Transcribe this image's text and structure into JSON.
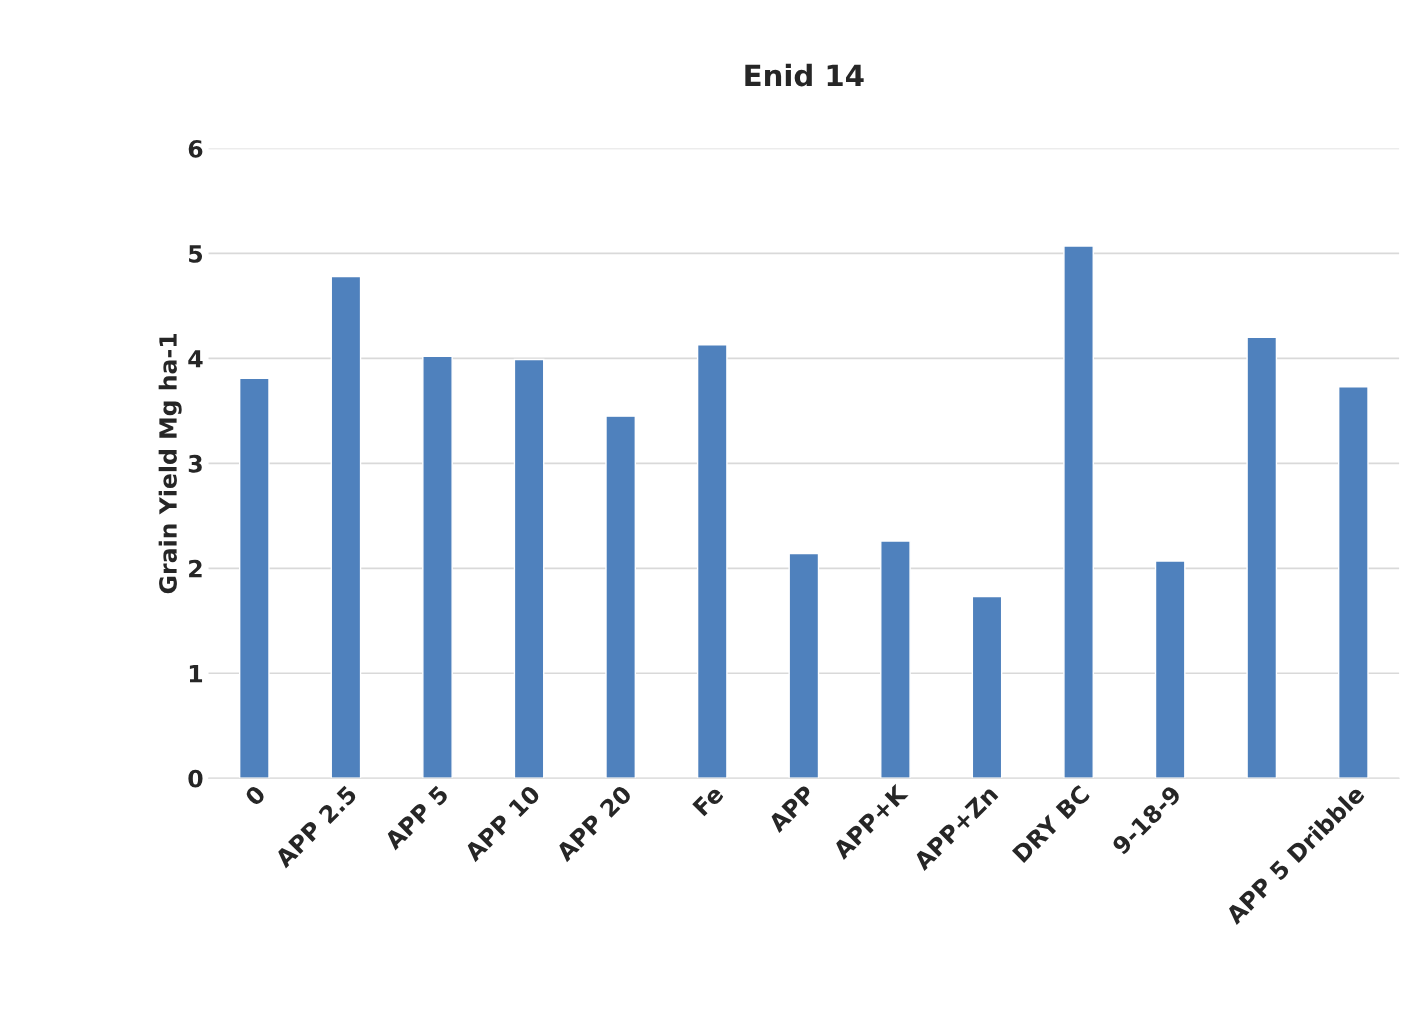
{
  "chart_data": {
    "type": "bar",
    "title": "Enid 14",
    "ylabel": "Grain Yield Mg ha-1",
    "categories": [
      "0",
      "APP 2.5",
      "APP 5",
      "APP 10",
      "APP 20",
      "Fe",
      "APP",
      "APP+K",
      "APP+Zn",
      "DRY BC",
      "9-18-9",
      null,
      "APP 5 Dribble"
    ],
    "values": [
      3.81,
      4.78,
      4.02,
      3.99,
      3.45,
      4.13,
      2.14,
      2.26,
      1.73,
      5.07,
      2.07,
      4.2,
      3.73
    ],
    "color": "#4f81bd",
    "ylim": [
      0,
      6
    ],
    "yticks": [
      0,
      1,
      2,
      3,
      4,
      5,
      6
    ],
    "grid": "y",
    "legend": false
  }
}
